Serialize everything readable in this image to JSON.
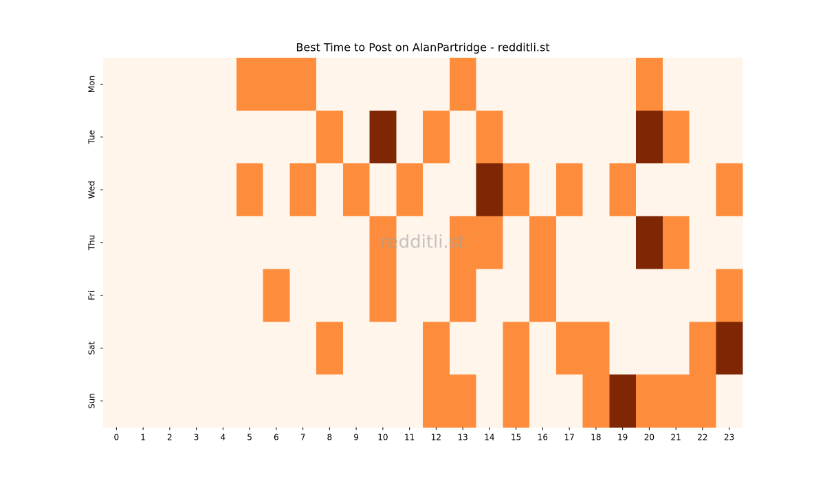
{
  "chart_data": {
    "type": "heatmap",
    "title": "Best Time to Post on AlanPartridge - redditli.st",
    "watermark": "redditli.st",
    "categories": [
      0,
      1,
      2,
      3,
      4,
      5,
      6,
      7,
      8,
      9,
      10,
      11,
      12,
      13,
      14,
      15,
      16,
      17,
      18,
      19,
      20,
      21,
      22,
      23
    ],
    "rows": [
      "Mon",
      "Tue",
      "Wed",
      "Thu",
      "Fri",
      "Sat",
      "Sun"
    ],
    "colors": [
      "#fff5eb",
      "#fd8d3c",
      "#7f2704"
    ],
    "values": [
      [
        0,
        0,
        0,
        0,
        0,
        1,
        1,
        1,
        0,
        0,
        0,
        0,
        0,
        1,
        0,
        0,
        0,
        0,
        0,
        0,
        1,
        0,
        0,
        0
      ],
      [
        0,
        0,
        0,
        0,
        0,
        0,
        0,
        0,
        1,
        0,
        2,
        0,
        1,
        0,
        1,
        0,
        0,
        0,
        0,
        0,
        2,
        1,
        0,
        0
      ],
      [
        0,
        0,
        0,
        0,
        0,
        1,
        0,
        1,
        0,
        1,
        0,
        1,
        0,
        0,
        2,
        1,
        0,
        1,
        0,
        1,
        0,
        0,
        0,
        1
      ],
      [
        0,
        0,
        0,
        0,
        0,
        0,
        0,
        0,
        0,
        0,
        1,
        0,
        0,
        1,
        1,
        0,
        1,
        0,
        0,
        0,
        2,
        1,
        0,
        0
      ],
      [
        0,
        0,
        0,
        0,
        0,
        0,
        1,
        0,
        0,
        0,
        1,
        0,
        0,
        1,
        0,
        0,
        1,
        0,
        0,
        0,
        0,
        0,
        0,
        1
      ],
      [
        0,
        0,
        0,
        0,
        0,
        0,
        0,
        0,
        1,
        0,
        0,
        0,
        1,
        0,
        0,
        1,
        0,
        1,
        1,
        0,
        0,
        0,
        1,
        2
      ],
      [
        0,
        0,
        0,
        0,
        0,
        0,
        0,
        0,
        0,
        0,
        0,
        0,
        1,
        1,
        0,
        1,
        0,
        0,
        1,
        2,
        1,
        1,
        1,
        0
      ]
    ]
  }
}
